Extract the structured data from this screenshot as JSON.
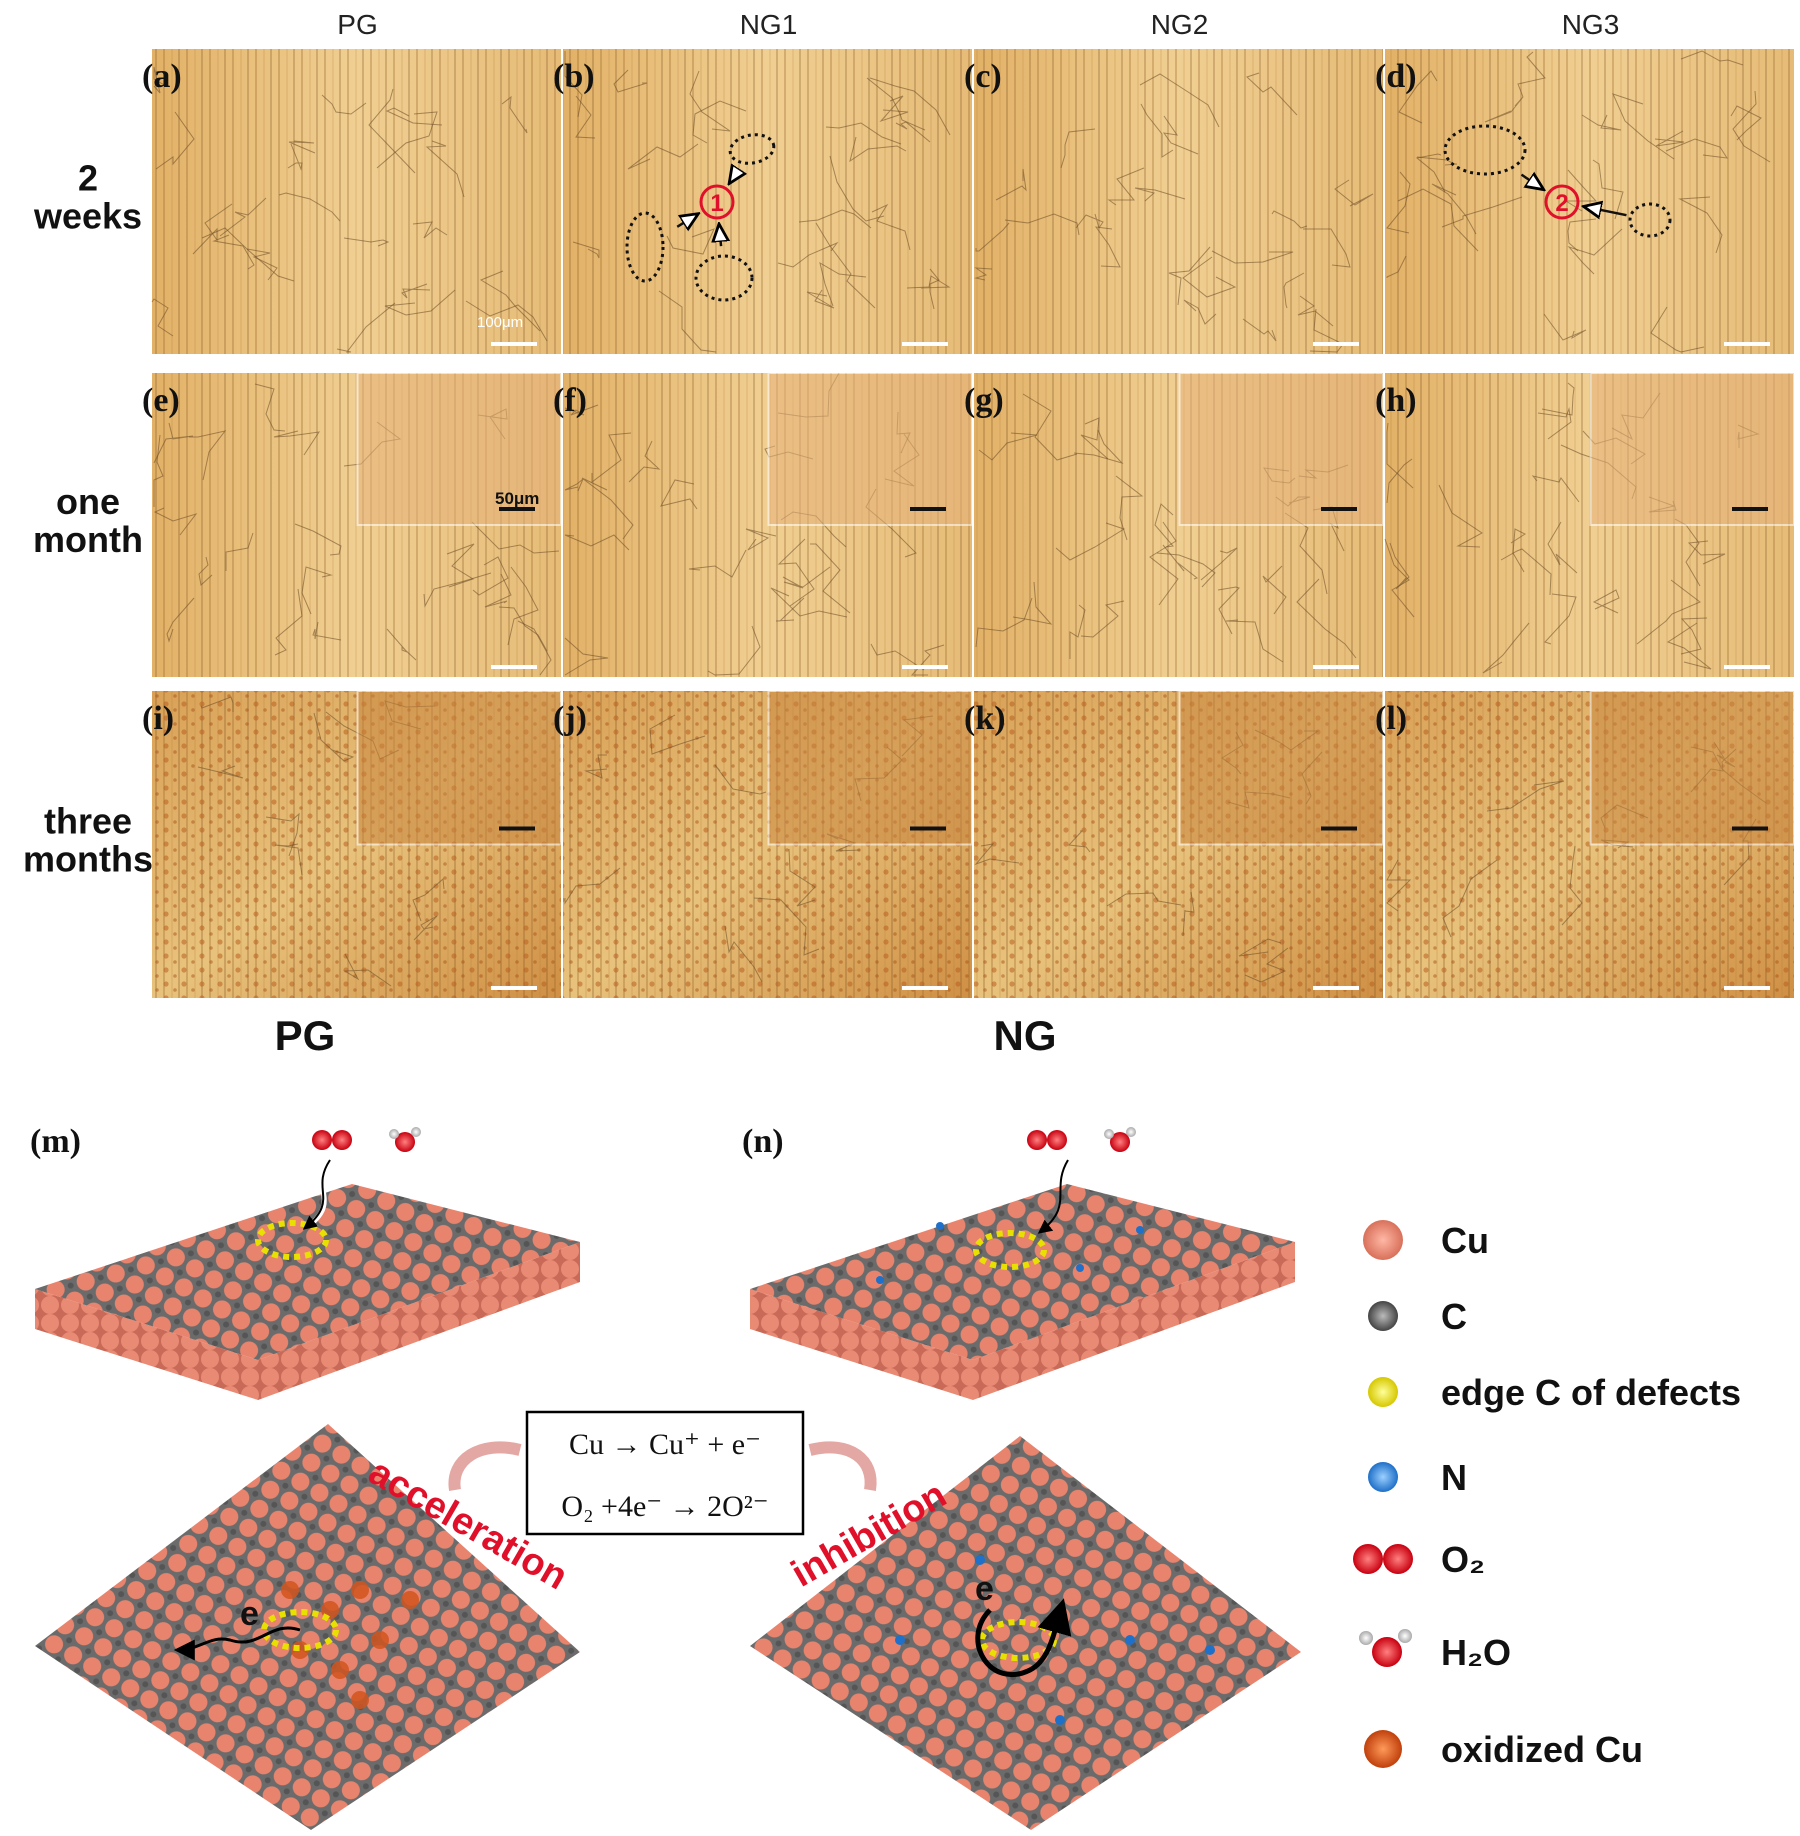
{
  "figure": {
    "columns": [
      "PG",
      "NG1",
      "NG2",
      "NG3"
    ],
    "rows": [
      [
        "2",
        "weeks"
      ],
      [
        "one",
        "month"
      ],
      [
        "three",
        "months"
      ]
    ],
    "panels": [
      [
        "(a)",
        "(b)",
        "(c)",
        "(d)"
      ],
      [
        "(e)",
        "(f)",
        "(g)",
        "(h)"
      ],
      [
        "(i)",
        "(j)",
        "(k)",
        "(l)"
      ]
    ],
    "scale_bars": [
      "100μm",
      "50μm"
    ],
    "markers": [
      "1",
      "2"
    ],
    "schematic": {
      "titles": [
        "PG",
        "NG"
      ],
      "panels": [
        "(m)",
        "(n)"
      ],
      "equations": [
        "Cu → Cu⁺ + e⁻",
        "O₂ +4e⁻ → 2O²⁻"
      ],
      "effects": [
        "acceleration",
        "inhibition"
      ],
      "electron": "e"
    },
    "legend": [
      "Cu",
      "C",
      "edge C of defects",
      "N",
      "O₂",
      "H₂O",
      "oxidized Cu"
    ]
  }
}
